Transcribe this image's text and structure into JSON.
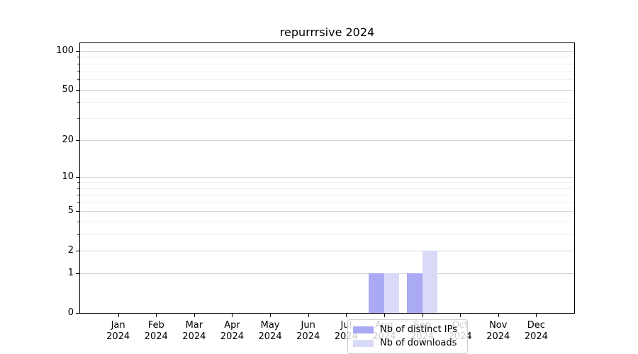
{
  "title": "repurrrsive 2024",
  "colors": {
    "distinct_ips": "#a9a9f4",
    "downloads": "#d9d9f8",
    "axis": "#000000",
    "grid_major": "#d3d3d3",
    "grid_minor": "#efefef",
    "legend_border": "#cccccc",
    "background": "#ffffff"
  },
  "chart_data": {
    "type": "bar",
    "title": "repurrrsive 2024",
    "categories": [
      "Jan 2024",
      "Feb 2024",
      "Mar 2024",
      "Apr 2024",
      "May 2024",
      "Jun 2024",
      "Jul 2024",
      "Aug 2024",
      "Sep 2024",
      "Oct 2024",
      "Nov 2024",
      "Dec 2024"
    ],
    "month_labels": [
      "Jan",
      "Feb",
      "Mar",
      "Apr",
      "May",
      "Jun",
      "Jul",
      "Aug",
      "Sep",
      "Oct",
      "Nov",
      "Dec"
    ],
    "year_label": "2024",
    "series": [
      {
        "name": "Nb of distinct IPs",
        "color": "#a9a9f4",
        "values": [
          0,
          0,
          0,
          0,
          0,
          0,
          0,
          1,
          1,
          0,
          0,
          0
        ]
      },
      {
        "name": "Nb of downloads",
        "color": "#d9d9f8",
        "values": [
          0,
          0,
          0,
          0,
          0,
          0,
          0,
          1,
          2,
          0,
          0,
          0
        ]
      }
    ],
    "xlabel": "",
    "ylabel": "",
    "ylim": [
      0,
      100
    ],
    "y_scale": "log1p",
    "y_major_ticks": [
      0,
      1,
      2,
      5,
      10,
      20,
      50,
      100
    ],
    "y_minor_ticks": [
      3,
      4,
      6,
      7,
      8,
      9,
      30,
      40,
      60,
      70,
      80,
      90
    ],
    "grid": true,
    "legend_position": "lower center inside plot"
  }
}
